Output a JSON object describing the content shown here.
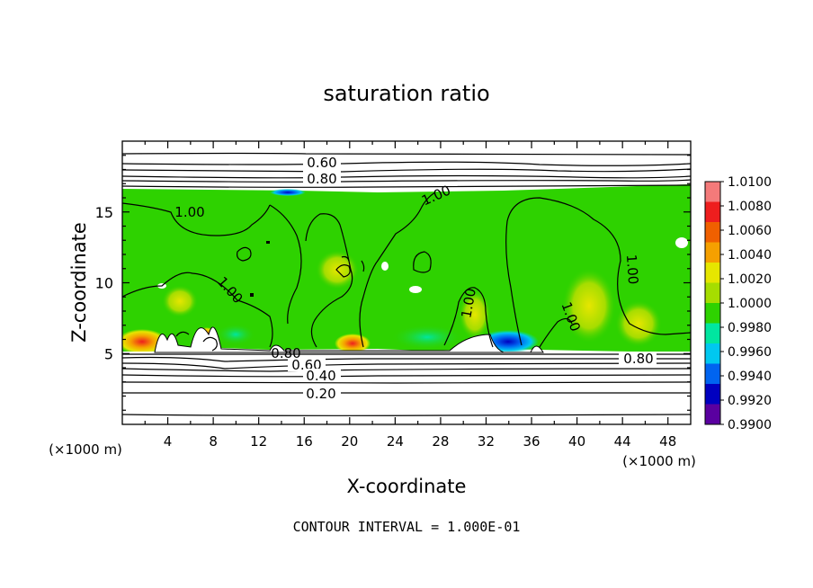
{
  "chart_data": {
    "type": "heatmap",
    "title": "saturation ratio",
    "xlabel": "X-coordinate",
    "ylabel": "Z-coordinate",
    "x_units": "(×1000 m)",
    "y_units": "(×1000 m)",
    "xlim": [
      0,
      50
    ],
    "ylim": [
      0,
      20
    ],
    "x_ticks": [
      4,
      8,
      12,
      16,
      20,
      24,
      28,
      32,
      36,
      40,
      44,
      48
    ],
    "y_ticks": [
      5,
      10,
      15
    ],
    "footer": "CONTOUR INTERVAL = 1.000E-01",
    "colorbar": {
      "ticks": [
        "1.0100",
        "1.0080",
        "1.0060",
        "1.0040",
        "1.0020",
        "1.0000",
        "0.9980",
        "0.9960",
        "0.9940",
        "0.9920",
        "0.9900"
      ],
      "colors": [
        "#f47a7a",
        "#ee1e1e",
        "#f06000",
        "#f5a000",
        "#e6e600",
        "#a6dd00",
        "#2ed200",
        "#00e6a0",
        "#00c8f0",
        "#0064f0",
        "#0000c0",
        "#5a00a0"
      ]
    },
    "contour_labels": [
      "0.60",
      "0.80",
      "1.00",
      "1.00",
      "1.00",
      "1.00",
      "1.00",
      "1.00",
      "0.80",
      "0.80",
      "0.60",
      "0.40",
      "0.20"
    ]
  }
}
